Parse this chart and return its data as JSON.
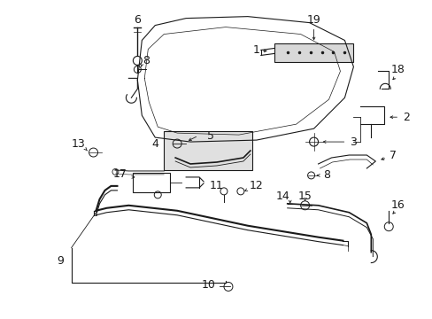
{
  "bg_color": "#ffffff",
  "fg_color": "#1a1a1a",
  "figsize": [
    4.89,
    3.6
  ],
  "dpi": 100
}
